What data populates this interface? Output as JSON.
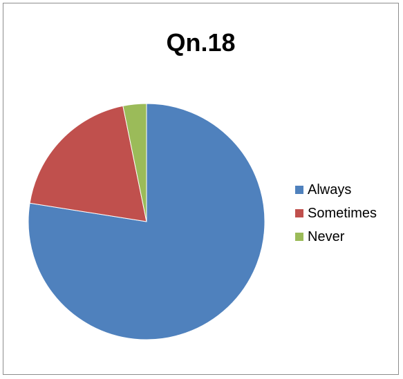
{
  "chart_data": {
    "type": "pie",
    "title": "Qn.18",
    "categories": [
      "Always",
      "Sometimes",
      "Never"
    ],
    "values": [
      77.5,
      19.3,
      3.2
    ],
    "colors": [
      "#4F81BD",
      "#C0504D",
      "#9BBB59"
    ],
    "legend_position": "right"
  }
}
